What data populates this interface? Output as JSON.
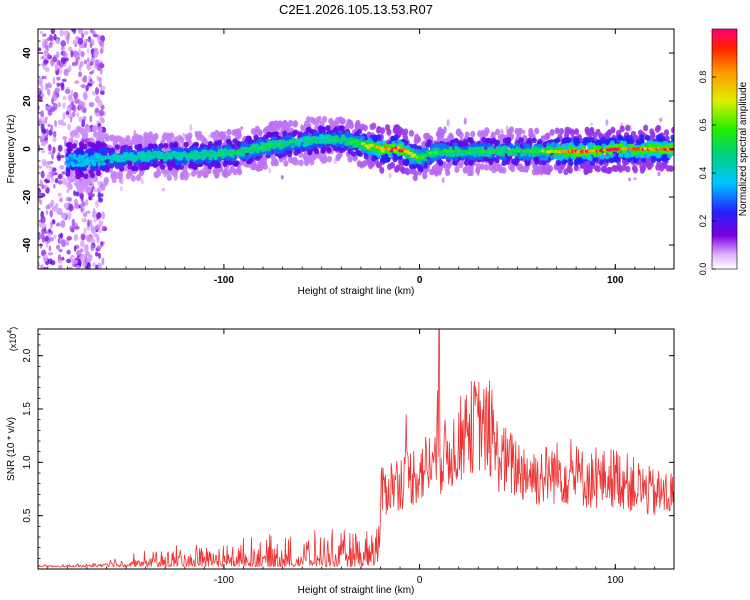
{
  "title": "C2E1.2026.105.13.53.R07",
  "chart_data": [
    {
      "type": "heatmap",
      "xlabel": "Height of straight line (km)",
      "ylabel": "Frequency (Hz)",
      "xlim": [
        -195,
        130
      ],
      "ylim": [
        -50,
        50
      ],
      "xticks": [
        -100,
        0,
        100
      ],
      "xtick_labels": [
        "-100",
        "0",
        "100"
      ],
      "yticks": [
        -40,
        -20,
        0,
        20,
        40
      ],
      "ytick_labels": [
        "-40",
        "-20",
        "0",
        "20",
        "40"
      ],
      "colorbar": {
        "label": "Normalized spectral amplitude",
        "range": [
          0,
          1
        ],
        "ticks": [
          0.0,
          0.2,
          0.4,
          0.6,
          0.8
        ],
        "tick_labels": [
          "0.0",
          "0.2",
          "0.4",
          "0.6",
          "0.8"
        ]
      },
      "ridge": {
        "x": [
          -195,
          -180,
          -160,
          -140,
          -120,
          -100,
          -90,
          -80,
          -70,
          -60,
          -50,
          -40,
          -35,
          -30,
          -25,
          -20,
          -10,
          -5,
          0,
          5,
          10,
          20,
          40,
          60,
          80,
          90,
          100,
          110,
          120,
          130
        ],
        "freq": [
          -7,
          -5,
          -4,
          -3,
          -3,
          -2,
          -1,
          1,
          2,
          3,
          4,
          4,
          3,
          2,
          1,
          0,
          0,
          -2,
          -4,
          -2,
          -1,
          -1,
          -1,
          -1,
          -1,
          -1,
          0,
          0,
          0,
          0
        ],
        "amplitude": [
          0.25,
          0.3,
          0.4,
          0.45,
          0.45,
          0.5,
          0.5,
          0.5,
          0.5,
          0.45,
          0.45,
          0.5,
          0.55,
          0.6,
          0.7,
          0.85,
          0.9,
          0.7,
          0.6,
          0.55,
          0.55,
          0.5,
          0.5,
          0.55,
          0.9,
          0.85,
          0.9,
          0.85,
          0.85,
          0.9
        ]
      }
    },
    {
      "type": "line",
      "xlabel": "Height of straight line (km)",
      "ylabel": "SNR (10 * v/v)",
      "scale_label": "(x10",
      "scale_exponent": "4",
      "xlim": [
        -195,
        130
      ],
      "ylim": [
        0,
        2.25
      ],
      "xticks": [
        -100,
        0,
        100
      ],
      "xtick_labels": [
        "-100",
        "0",
        "100"
      ],
      "yticks": [
        0.5,
        1.0,
        1.5,
        2.0
      ],
      "ytick_labels": [
        "0.5",
        "1.0",
        "1.5",
        "2.0"
      ],
      "series": [
        {
          "name": "SNR",
          "color": "#ee3333",
          "envelope_x": [
            -195,
            -170,
            -160,
            -150,
            -140,
            -130,
            -120,
            -110,
            -100,
            -90,
            -80,
            -70,
            -60,
            -50,
            -40,
            -30,
            -25,
            -20,
            -15,
            -10,
            -5,
            0,
            5,
            10,
            15,
            20,
            25,
            30,
            35,
            40,
            45,
            50,
            60,
            70,
            80,
            90,
            100,
            110,
            120,
            130
          ],
          "envelope_y": [
            0.02,
            0.03,
            0.08,
            0.12,
            0.15,
            0.2,
            0.22,
            0.25,
            0.25,
            0.28,
            0.3,
            0.28,
            0.3,
            0.35,
            0.35,
            0.35,
            0.4,
            0.85,
            0.95,
            1.0,
            1.05,
            1.1,
            1.2,
            1.25,
            1.3,
            1.45,
            1.6,
            1.65,
            1.55,
            1.3,
            1.2,
            1.15,
            1.05,
            1.1,
            1.05,
            1.0,
            1.05,
            0.95,
            0.85,
            0.85
          ],
          "peak_x": 10,
          "peak_y": 2.25
        }
      ]
    }
  ]
}
